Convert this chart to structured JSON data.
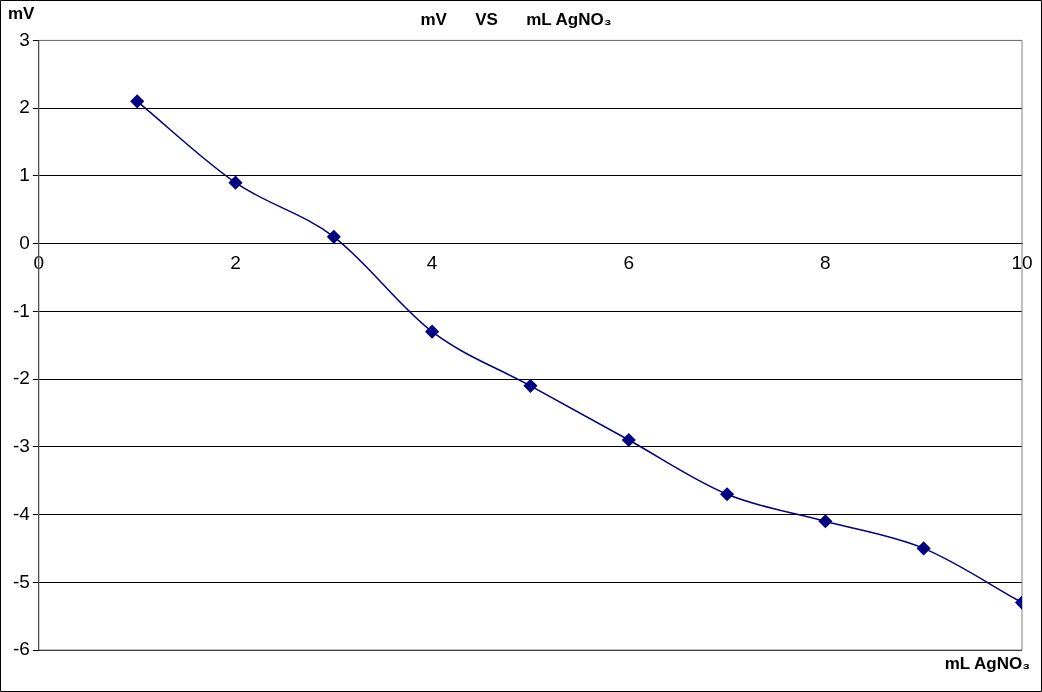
{
  "chart_data": {
    "type": "line",
    "title": "mV      VS      mL AgNO₃",
    "xlabel": "mL AgNO₃",
    "ylabel": "mV",
    "x": [
      1,
      2,
      3,
      4,
      5,
      6,
      7,
      8,
      9,
      10
    ],
    "series": [
      {
        "color": "#000080",
        "values": [
          2.1,
          0.9,
          0.1,
          -1.3,
          -2.1,
          -2.9,
          -3.7,
          -4.1,
          -4.5,
          -5.3
        ]
      }
    ],
    "xlim": [
      0,
      10
    ],
    "xticks": [
      0,
      2,
      4,
      6,
      8,
      10
    ],
    "ylim": [
      -6,
      3
    ],
    "yticks": [
      -6,
      -5,
      -4,
      -3,
      -2,
      -1,
      0,
      1,
      2,
      3
    ],
    "grid": "y",
    "legend": false,
    "marker": "diamond",
    "line_style": "solid"
  }
}
